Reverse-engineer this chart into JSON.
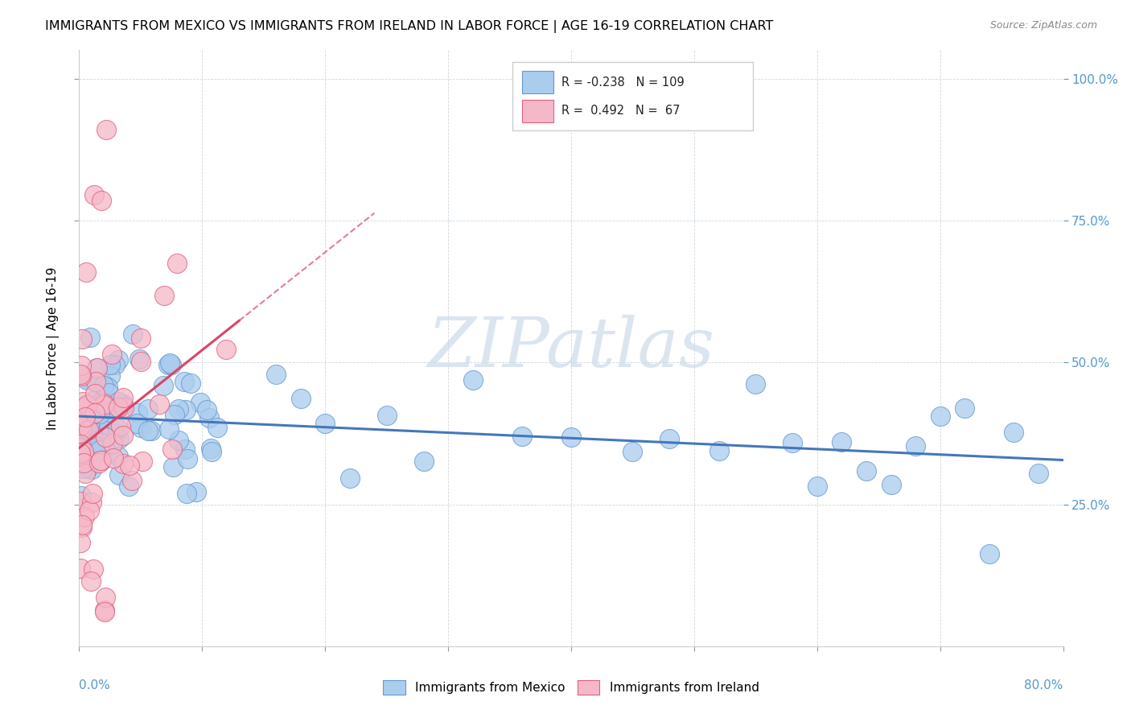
{
  "title": "IMMIGRANTS FROM MEXICO VS IMMIGRANTS FROM IRELAND IN LABOR FORCE | AGE 16-19 CORRELATION CHART",
  "source": "Source: ZipAtlas.com",
  "ylabel": "In Labor Force | Age 16-19",
  "right_yticks": [
    "25.0%",
    "50.0%",
    "75.0%",
    "100.0%"
  ],
  "right_ytick_vals": [
    0.25,
    0.5,
    0.75,
    1.0
  ],
  "blue_color": "#aaccee",
  "pink_color": "#f5b8c8",
  "blue_edge_color": "#6699cc",
  "pink_edge_color": "#e06080",
  "blue_line_color": "#4477bb",
  "pink_line_color": "#dd4466",
  "watermark": "ZIPatlas",
  "watermark_color": "#c8d8e8",
  "background_color": "#ffffff",
  "legend_label_mexico": "Immigrants from Mexico",
  "legend_label_ireland": "Immigrants from Ireland",
  "legend_blue_R": "-0.238",
  "legend_blue_N": "109",
  "legend_pink_R": "0.492",
  "legend_pink_N": "67",
  "xmin": 0.0,
  "xmax": 0.8,
  "ymin": 0.0,
  "ymax": 1.05
}
